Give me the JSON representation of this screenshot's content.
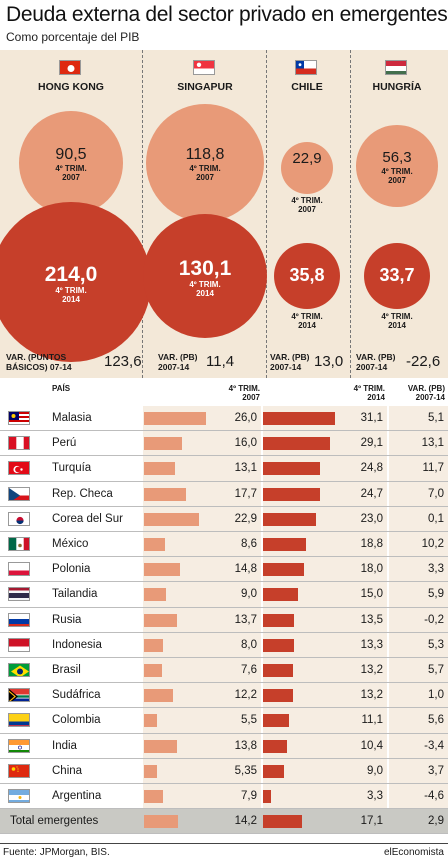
{
  "title": "Deuda externa del sector privado en emergentes",
  "subtitle": "Como porcentaje del PIB",
  "top_countries": [
    {
      "name": "HONG KONG",
      "flag": "hong-kong-flag",
      "v2007": "90,5",
      "v2014": "214,0",
      "sub2007": "4º TRIM.",
      "sub2007b": "2007",
      "sub2014": "4º TRIM.",
      "sub2014b": "2014",
      "var_label_1": "VAR. (PUNTOS",
      "var_label_2": "BÁSICOS) 07-14",
      "var_value": "123,6"
    },
    {
      "name": "SINGAPUR",
      "flag": "singapore-flag",
      "v2007": "118,8",
      "v2014": "130,1",
      "sub2007": "4º TRIM.",
      "sub2007b": "2007",
      "sub2014": "4º TRIM.",
      "sub2014b": "2014",
      "var_label_1": "VAR. (PB)",
      "var_label_2": "2007-14",
      "var_value": "11,4"
    },
    {
      "name": "CHILE",
      "flag": "chile-flag",
      "v2007": "22,9",
      "v2014": "35,8",
      "sub2007": "4º TRIM.",
      "sub2007b": "2007",
      "sub2014": "4º TRIM.",
      "sub2014b": "2014",
      "var_label_1": "VAR. (PB)",
      "var_label_2": "2007-14",
      "var_value": "13,0"
    },
    {
      "name": "HUNGRÍA",
      "flag": "hungary-flag",
      "v2007": "56,3",
      "v2014": "33,7",
      "sub2007": "4º TRIM.",
      "sub2007b": "2007",
      "sub2014": "4º TRIM.",
      "sub2014b": "2014",
      "var_label_1": "VAR. (PB)",
      "var_label_2": "2007-14",
      "var_value": "-22,6"
    }
  ],
  "table_headers": {
    "pais": "PAÍS",
    "col_2007_a": "4º TRIM.",
    "col_2007_b": "2007",
    "col_2014_a": "4º TRIM.",
    "col_2014_b": "2014",
    "col_var_a": "VAR. (PB)",
    "col_var_b": "2007-14"
  },
  "table_rows": [
    {
      "pais": "Malasia",
      "flag": "malaysia-flag",
      "v2007": "26,0",
      "v2014": "31,1",
      "var": "5,1"
    },
    {
      "pais": "Perú",
      "flag": "peru-flag",
      "v2007": "16,0",
      "v2014": "29,1",
      "var": "13,1"
    },
    {
      "pais": "Turquía",
      "flag": "turkey-flag",
      "v2007": "13,1",
      "v2014": "24,8",
      "var": "11,7"
    },
    {
      "pais": "Rep. Checa",
      "flag": "czech-flag",
      "v2007": "17,7",
      "v2014": "24,7",
      "var": "7,0"
    },
    {
      "pais": "Corea del Sur",
      "flag": "south-korea-flag",
      "v2007": "22,9",
      "v2014": "23,0",
      "var": "0,1"
    },
    {
      "pais": "México",
      "flag": "mexico-flag",
      "v2007": "8,6",
      "v2014": "18,8",
      "var": "10,2"
    },
    {
      "pais": "Polonia",
      "flag": "poland-flag",
      "v2007": "14,8",
      "v2014": "18,0",
      "var": "3,3"
    },
    {
      "pais": "Tailandia",
      "flag": "thailand-flag",
      "v2007": "9,0",
      "v2014": "15,0",
      "var": "5,9"
    },
    {
      "pais": "Rusia",
      "flag": "russia-flag",
      "v2007": "13,7",
      "v2014": "13,5",
      "var": "-0,2"
    },
    {
      "pais": "Indonesia",
      "flag": "indonesia-flag",
      "v2007": "8,0",
      "v2014": "13,3",
      "var": "5,3"
    },
    {
      "pais": "Brasil",
      "flag": "brazil-flag",
      "v2007": "7,6",
      "v2014": "13,2",
      "var": "5,7"
    },
    {
      "pais": "Sudáfrica",
      "flag": "south-africa-flag",
      "v2007": "12,2",
      "v2014": "13,2",
      "var": "1,0"
    },
    {
      "pais": "Colombia",
      "flag": "colombia-flag",
      "v2007": "5,5",
      "v2014": "11,1",
      "var": "5,6"
    },
    {
      "pais": "India",
      "flag": "india-flag",
      "v2007": "13,8",
      "v2014": "10,4",
      "var": "-3,4"
    },
    {
      "pais": "China",
      "flag": "china-flag",
      "v2007": "5,35",
      "v2014": "9,0",
      "var": "3,7"
    },
    {
      "pais": "Argentina",
      "flag": "argentina-flag",
      "v2007": "7,9",
      "v2014": "3,3",
      "var": "-4,6"
    },
    {
      "pais": "Total emergentes",
      "flag": "",
      "v2007": "14,2",
      "v2014": "17,1",
      "var": "2,9",
      "total": true
    }
  ],
  "colors": {
    "light_bar": "#e89a78",
    "dark_bar": "#c63f2a",
    "panel_bg": "#f3e8d8",
    "total_bg": "#c9c9c4"
  },
  "chart_data": [
    {
      "type": "bubble",
      "categories": [
        "HONG KONG",
        "SINGAPUR",
        "CHILE",
        "HUNGRÍA"
      ],
      "series": [
        {
          "name": "4º TRIM. 2007",
          "values": [
            90.5,
            118.8,
            22.9,
            56.3
          ]
        },
        {
          "name": "4º TRIM. 2014",
          "values": [
            214.0,
            130.1,
            35.8,
            33.7
          ]
        }
      ],
      "var": [
        123.6,
        11.4,
        13.0,
        -22.6
      ],
      "title": "Deuda externa del sector privado en emergentes",
      "subtitle": "Como porcentaje del PIB"
    },
    {
      "type": "bar",
      "categories": [
        "Malasia",
        "Perú",
        "Turquía",
        "Rep. Checa",
        "Corea del Sur",
        "México",
        "Polonia",
        "Tailandia",
        "Rusia",
        "Indonesia",
        "Brasil",
        "Sudáfrica",
        "Colombia",
        "India",
        "China",
        "Argentina",
        "Total emergentes"
      ],
      "series": [
        {
          "name": "4º TRIM. 2007",
          "values": [
            26.0,
            16.0,
            13.1,
            17.7,
            22.9,
            8.6,
            14.8,
            9.0,
            13.7,
            8.0,
            7.6,
            12.2,
            5.5,
            13.8,
            5.35,
            7.9,
            14.2
          ]
        },
        {
          "name": "4º TRIM. 2014",
          "values": [
            31.1,
            29.1,
            24.8,
            24.7,
            23.0,
            18.8,
            18.0,
            15.0,
            13.5,
            13.3,
            13.2,
            13.2,
            11.1,
            10.4,
            9.0,
            3.3,
            17.1
          ]
        },
        {
          "name": "VAR. (PB) 2007-14",
          "values": [
            5.1,
            13.1,
            11.7,
            7.0,
            0.1,
            10.2,
            3.3,
            5.9,
            -0.2,
            5.3,
            5.7,
            1.0,
            5.6,
            -3.4,
            3.7,
            -4.6,
            2.9
          ]
        }
      ]
    }
  ],
  "footer": {
    "source": "Fuente: JPMorgan, BIS.",
    "credit": "elEconomista"
  }
}
